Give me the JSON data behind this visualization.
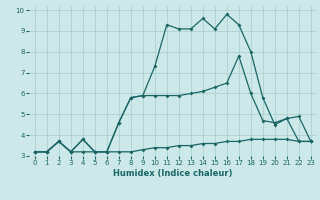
{
  "xlabel": "Humidex (Indice chaleur)",
  "bg_color": "#cce8e8",
  "grid_color": "#aacccc",
  "line_color": "#1a6666",
  "xlim": [
    -0.5,
    23.5
  ],
  "ylim": [
    3.0,
    10.2
  ],
  "xticks": [
    0,
    1,
    2,
    3,
    4,
    5,
    6,
    7,
    8,
    9,
    10,
    11,
    12,
    13,
    14,
    15,
    16,
    17,
    18,
    19,
    20,
    21,
    22,
    23
  ],
  "yticks": [
    3,
    4,
    5,
    6,
    7,
    8,
    9,
    10
  ],
  "line1_x": [
    0,
    1,
    2,
    3,
    4,
    5,
    6,
    7,
    8,
    9,
    10,
    11,
    12,
    13,
    14,
    15,
    16,
    17,
    18,
    19,
    20,
    21,
    22,
    23
  ],
  "line1_y": [
    3.2,
    3.2,
    3.7,
    3.2,
    3.2,
    3.2,
    3.2,
    3.2,
    3.2,
    3.3,
    3.4,
    3.4,
    3.5,
    3.5,
    3.6,
    3.6,
    3.7,
    3.7,
    3.8,
    3.8,
    3.8,
    3.8,
    3.7,
    3.7
  ],
  "line2_x": [
    0,
    1,
    2,
    3,
    4,
    5,
    6,
    7,
    8,
    9,
    10,
    11,
    12,
    13,
    14,
    15,
    16,
    17,
    18,
    19,
    20,
    21,
    22,
    23
  ],
  "line2_y": [
    3.2,
    3.2,
    3.7,
    3.2,
    3.8,
    3.2,
    3.2,
    4.6,
    5.8,
    5.9,
    5.9,
    5.9,
    5.9,
    6.0,
    6.1,
    6.3,
    6.5,
    7.8,
    6.0,
    4.7,
    4.6,
    4.8,
    3.7,
    3.7
  ],
  "line3_x": [
    0,
    1,
    2,
    3,
    4,
    5,
    6,
    7,
    8,
    9,
    10,
    11,
    12,
    13,
    14,
    15,
    16,
    17,
    18,
    19,
    20,
    21,
    22,
    23
  ],
  "line3_y": [
    3.2,
    3.2,
    3.7,
    3.2,
    3.8,
    3.2,
    3.2,
    4.6,
    5.8,
    5.9,
    7.3,
    9.3,
    9.1,
    9.1,
    9.6,
    9.1,
    9.8,
    9.3,
    8.0,
    5.8,
    4.5,
    4.8,
    4.9,
    3.7
  ]
}
